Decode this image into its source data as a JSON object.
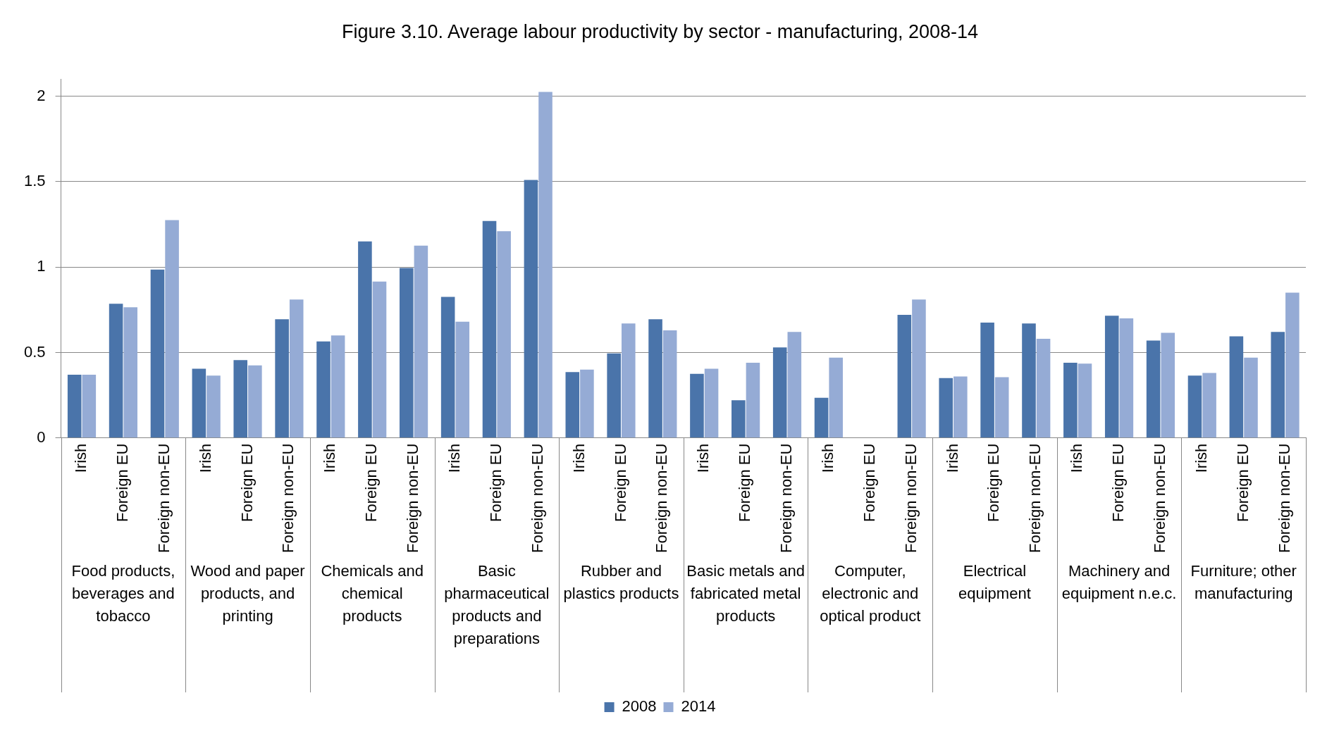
{
  "chart_data": {
    "type": "bar",
    "title": "Figure 3.10. Average labour productivity by sector - manufacturing, 2008-14",
    "categories": [
      "Irish",
      "Foreign EU",
      "Foreign non-EU",
      "Irish",
      "Foreign EU",
      "Foreign non-EU",
      "Irish",
      "Foreign EU",
      "Foreign non-EU",
      "Irish",
      "Foreign EU",
      "Foreign non-EU",
      "Irish",
      "Foreign EU",
      "Foreign non-EU",
      "Irish",
      "Foreign EU",
      "Foreign non-EU",
      "Irish",
      "Foreign EU",
      "Foreign non-EU",
      "Irish",
      "Foreign EU",
      "Foreign non-EU",
      "Irish",
      "Foreign EU",
      "Foreign non-EU",
      "Irish",
      "Foreign EU",
      "Foreign non-EU"
    ],
    "series": [
      {
        "name": "2008",
        "color": "#4a74aa",
        "values": [
          0.37,
          0.785,
          0.985,
          0.405,
          0.455,
          0.695,
          0.565,
          1.15,
          0.995,
          0.825,
          1.27,
          1.51,
          0.385,
          0.495,
          0.695,
          0.375,
          0.22,
          0.53,
          0.235,
          null,
          0.72,
          0.35,
          0.675,
          0.67,
          0.44,
          0.715,
          0.57,
          0.365,
          0.595,
          0.62
        ]
      },
      {
        "name": "2014",
        "color": "#95abd5",
        "values": [
          0.37,
          0.765,
          1.275,
          0.365,
          0.425,
          0.81,
          0.6,
          0.915,
          1.125,
          0.68,
          1.21,
          2.025,
          0.4,
          0.67,
          0.63,
          0.405,
          0.44,
          0.62,
          0.47,
          null,
          0.81,
          0.36,
          0.355,
          0.58,
          0.435,
          0.7,
          0.615,
          0.38,
          0.47,
          0.85
        ]
      }
    ],
    "annotations": [
      "Food products, beverages and tobacco",
      "Wood and paper products, and printing",
      "Chemicals and chemical products",
      "Basic pharmaceutical products and preparations",
      "Rubber and plastics products",
      "Basic metals and fabricated metal products",
      "Computer, electronic and optical product",
      "Electrical equipment",
      "Machinery and equipment n.e.c.",
      "Furniture; other manufacturing"
    ],
    "ylim": [
      0,
      2.1
    ],
    "yticks": [
      0,
      0.5,
      1,
      1.5,
      2
    ],
    "grid": "y",
    "legend": "bottom"
  }
}
